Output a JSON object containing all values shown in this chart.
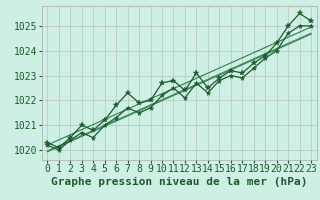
{
  "xlabel": "Graphe pression niveau de la mer (hPa)",
  "bg_color": "#cef0e4",
  "line_color_dark": "#1a5c2a",
  "line_color_mid": "#2e7d4f",
  "xlim": [
    -0.5,
    23.5
  ],
  "ylim": [
    1019.6,
    1025.8
  ],
  "yticks": [
    1020,
    1021,
    1022,
    1023,
    1024,
    1025
  ],
  "xticks": [
    0,
    1,
    2,
    3,
    4,
    5,
    6,
    7,
    8,
    9,
    10,
    11,
    12,
    13,
    14,
    15,
    16,
    17,
    18,
    19,
    20,
    21,
    22,
    23
  ],
  "hours": [
    0,
    1,
    2,
    3,
    4,
    5,
    6,
    7,
    8,
    9,
    10,
    11,
    12,
    13,
    14,
    15,
    16,
    17,
    18,
    19,
    20,
    21,
    22,
    23
  ],
  "p1": [
    1020.3,
    1020.1,
    1020.5,
    1021.0,
    1020.8,
    1021.2,
    1021.8,
    1022.3,
    1021.9,
    1022.0,
    1022.7,
    1022.8,
    1022.4,
    1023.1,
    1022.5,
    1022.9,
    1023.2,
    1023.1,
    1023.5,
    1023.8,
    1024.3,
    1025.0,
    1025.5,
    1025.2
  ],
  "p2": [
    1020.2,
    1020.0,
    1020.4,
    1020.7,
    1020.5,
    1021.0,
    1021.3,
    1021.7,
    1021.5,
    1021.7,
    1022.2,
    1022.5,
    1022.1,
    1022.7,
    1022.3,
    1022.8,
    1023.0,
    1022.9,
    1023.3,
    1023.7,
    1024.0,
    1024.7,
    1025.0,
    1025.0
  ],
  "xlabel_fontsize": 8,
  "tick_fontsize": 7
}
